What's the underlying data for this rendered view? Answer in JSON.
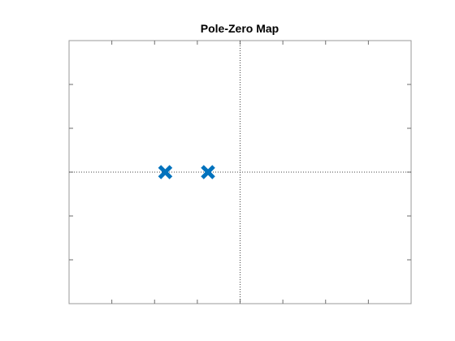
{
  "chart_data": {
    "type": "scatter",
    "title": "Pole-Zero Map",
    "xlabel": "",
    "ylabel": "",
    "xlim": [
      -4,
      4
    ],
    "ylim": [
      -3,
      3
    ],
    "grid": false,
    "reference_lines": {
      "real_axis_y": 0,
      "imaginary_axis_x": 0
    },
    "poles": [
      {
        "x": -1.75,
        "y": 0
      },
      {
        "x": -0.75,
        "y": 0
      }
    ],
    "zeros": [],
    "marker": "x",
    "marker_color": "#0072BD",
    "x_ticks": [
      -4,
      -3,
      -2,
      -1,
      0,
      1,
      2,
      3,
      4
    ],
    "y_ticks": [
      -3,
      -2,
      -1,
      0,
      1,
      2,
      3
    ]
  }
}
